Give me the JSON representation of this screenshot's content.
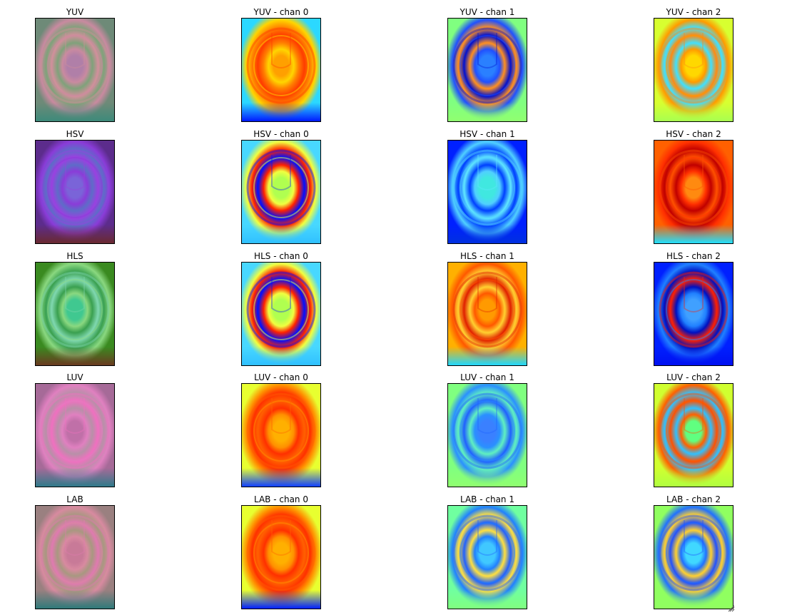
{
  "figure": {
    "rows": [
      {
        "space": "YUV",
        "panels": [
          {
            "title": "YUV",
            "palette": {
              "bg": "#6e8a78",
              "ring1": "#c98aa0",
              "ring2": "#7fa27a",
              "ring3": "#d28f9c",
              "center": "#b07fa8",
              "bottom": "#3d8a7a"
            }
          },
          {
            "title": "YUV - chan 0",
            "palette": {
              "bg": "#2bd8ff",
              "ring1": "#ffd500",
              "ring2": "#ff8000",
              "ring3": "#ff3c00",
              "center": "#ffa000",
              "bottom": "#0018ff"
            }
          },
          {
            "title": "YUV - chan 1",
            "palette": {
              "bg": "#80ff80",
              "ring1": "#2050ff",
              "ring2": "#ff9020",
              "ring3": "#0010d0",
              "center": "#2a80ff",
              "bottom": "#90ff70"
            }
          },
          {
            "title": "YUV - chan 2",
            "palette": {
              "bg": "#d8ff30",
              "ring1": "#ff9a00",
              "ring2": "#40e0ff",
              "ring3": "#ff8a10",
              "center": "#ffd800",
              "bottom": "#a8ff50"
            }
          }
        ]
      },
      {
        "space": "HSV",
        "panels": [
          {
            "title": "HSV",
            "palette": {
              "bg": "#5c2c8c",
              "ring1": "#8a3cd8",
              "ring2": "#5e6cc8",
              "ring3": "#9a40e0",
              "center": "#7a64d8",
              "bottom": "#6a2a30"
            }
          },
          {
            "title": "HSV - chan 0",
            "palette": {
              "bg": "#48d8ff",
              "ring1": "#f0ff40",
              "ring2": "#ff2000",
              "ring3": "#0010ff",
              "center": "#b0ff50",
              "bottom": "#30c0ff"
            }
          },
          {
            "title": "HSV - chan 1",
            "palette": {
              "bg": "#0020ff",
              "ring1": "#50d0ff",
              "ring2": "#0040ff",
              "ring3": "#60e8ff",
              "center": "#40e8e0",
              "bottom": "#0030e0"
            }
          },
          {
            "title": "HSV - chan 2",
            "palette": {
              "bg": "#ff6000",
              "ring1": "#ff3000",
              "ring2": "#c00000",
              "ring3": "#ff5000",
              "center": "#ff8a10",
              "bottom": "#20e0ff"
            }
          }
        ]
      },
      {
        "space": "HLS",
        "panels": [
          {
            "title": "HLS",
            "palette": {
              "bg": "#3a8a20",
              "ring1": "#8ad880",
              "ring2": "#3aa050",
              "ring3": "#80d8b0",
              "center": "#40c890",
              "bottom": "#6a3a20"
            }
          },
          {
            "title": "HLS - chan 0",
            "palette": {
              "bg": "#48d8ff",
              "ring1": "#f0ff40",
              "ring2": "#ff2000",
              "ring3": "#0010ff",
              "center": "#b0ff50",
              "bottom": "#30c0ff"
            }
          },
          {
            "title": "HLS - chan 1",
            "palette": {
              "bg": "#ffb000",
              "ring1": "#ff5800",
              "ring2": "#ffd030",
              "ring3": "#e02000",
              "center": "#ff9a00",
              "bottom": "#20d8ff"
            }
          },
          {
            "title": "HLS - chan 2",
            "palette": {
              "bg": "#0020ff",
              "ring1": "#2080ff",
              "ring2": "#0010c0",
              "ring3": "#ff2000",
              "center": "#40a0ff",
              "bottom": "#0010f0"
            }
          }
        ]
      },
      {
        "space": "LUV",
        "panels": [
          {
            "title": "LUV",
            "palette": {
              "bg": "#a66a98",
              "ring1": "#e080c0",
              "ring2": "#b890a8",
              "ring3": "#f070c0",
              "center": "#c070a8",
              "bottom": "#2f7a8a"
            }
          },
          {
            "title": "LUV - chan 0",
            "palette": {
              "bg": "#e8ff30",
              "ring1": "#ff9000",
              "ring2": "#ff3000",
              "ring3": "#ff6000",
              "center": "#ffb000",
              "bottom": "#1040ff"
            }
          },
          {
            "title": "LUV - chan 1",
            "palette": {
              "bg": "#80ff80",
              "ring1": "#2a90ff",
              "ring2": "#60f0c0",
              "ring3": "#2060ff",
              "center": "#3a80ff",
              "bottom": "#90ff70"
            }
          },
          {
            "title": "LUV - chan 2",
            "palette": {
              "bg": "#d0ff30",
              "ring1": "#ff6000",
              "ring2": "#30c0ff",
              "ring3": "#ff5000",
              "center": "#60ff80",
              "bottom": "#b0ff40"
            }
          }
        ]
      },
      {
        "space": "LAB",
        "panels": [
          {
            "title": "LAB",
            "palette": {
              "bg": "#9a8080",
              "ring1": "#d88aa0",
              "ring2": "#a89880",
              "ring3": "#e07ab0",
              "center": "#c87a98",
              "bottom": "#2f7a7a"
            }
          },
          {
            "title": "LAB - chan 0",
            "palette": {
              "bg": "#e8ff30",
              "ring1": "#ff9000",
              "ring2": "#ff3000",
              "ring3": "#ff6000",
              "center": "#ffb000",
              "bottom": "#0020ff"
            }
          },
          {
            "title": "LAB - chan 1",
            "palette": {
              "bg": "#70ffa0",
              "ring1": "#2080ff",
              "ring2": "#ffe040",
              "ring3": "#2060ff",
              "center": "#40c8ff",
              "bottom": "#80ff80"
            }
          },
          {
            "title": "LAB - chan 2",
            "palette": {
              "bg": "#90ff60",
              "ring1": "#2070ff",
              "ring2": "#ffd030",
              "ring3": "#2050ff",
              "center": "#40d8ff",
              "bottom": "#90ff60"
            }
          }
        ]
      }
    ]
  }
}
